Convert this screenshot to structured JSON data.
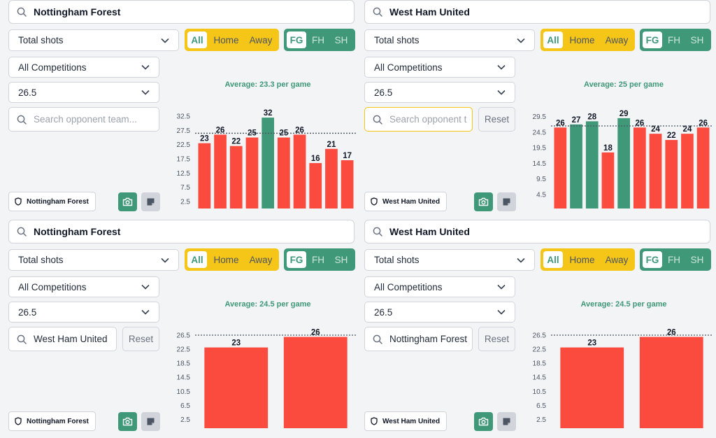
{
  "colors": {
    "over": "#fb4a3e",
    "under": "#3f9877",
    "accent_green": "#3f9877",
    "accent_yellow": "#f5c518"
  },
  "panels": [
    {
      "team": "Nottingham Forest",
      "stat": "Total shots",
      "location_options": [
        "All",
        "Home",
        "Away"
      ],
      "location_selected": "All",
      "period_options": [
        "FG",
        "FH",
        "SH"
      ],
      "period_selected": "FG",
      "competition": "All Competitions",
      "line": "26.5",
      "opponent": {
        "value": "",
        "placeholder": "Search opponent team..."
      },
      "reset_label": "",
      "team_badge": "Nottingham Forest",
      "average_label": "Average: 23.3 per game",
      "chart_data": {
        "type": "bar",
        "values": [
          23,
          26,
          22,
          25,
          32,
          25,
          26,
          16,
          21,
          17
        ],
        "highlight": [
          false,
          false,
          false,
          false,
          true,
          false,
          false,
          false,
          false,
          false
        ],
        "threshold": 26.5,
        "yticks": [
          "2.5",
          "7.5",
          "12.5",
          "17.5",
          "22.5",
          "27.5",
          "32.5"
        ],
        "yrange": [
          0,
          34
        ],
        "data_labels": [
          "23",
          "26",
          "22",
          "25",
          "32",
          "25",
          "26",
          "16",
          "21",
          "17"
        ]
      }
    },
    {
      "team": "West Ham United",
      "stat": "Total shots",
      "location_options": [
        "All",
        "Home",
        "Away"
      ],
      "location_selected": "All",
      "period_options": [
        "FG",
        "FH",
        "SH"
      ],
      "period_selected": "FG",
      "competition": "All Competitions",
      "line": "26.5",
      "opponent": {
        "value": "",
        "placeholder": "Search opponent t"
      },
      "reset_label": "Reset",
      "team_badge": "West Ham United",
      "average_label": "Average: 25 per game",
      "chart_data": {
        "type": "bar",
        "values": [
          26,
          27,
          28,
          18,
          29,
          26,
          24,
          22,
          24,
          26
        ],
        "highlight": [
          false,
          true,
          true,
          false,
          true,
          false,
          false,
          false,
          false,
          false
        ],
        "threshold": 26.5,
        "yticks": [
          "4.5",
          "9.5",
          "14.5",
          "19.5",
          "24.5",
          "29.5"
        ],
        "yrange": [
          0,
          31
        ],
        "data_labels": [
          "26",
          "27",
          "28",
          "18",
          "29",
          "26",
          "24",
          "22",
          "24",
          "26"
        ]
      }
    },
    {
      "team": "Nottingham Forest",
      "stat": "Total shots",
      "location_options": [
        "All",
        "Home",
        "Away"
      ],
      "location_selected": "All",
      "period_options": [
        "FG",
        "FH",
        "SH"
      ],
      "period_selected": "FG",
      "competition": "All Competitions",
      "line": "26.5",
      "opponent": {
        "value": "West Ham United",
        "placeholder": ""
      },
      "reset_label": "Reset",
      "team_badge": "Nottingham Forest",
      "average_label": "Average: 24.5 per game",
      "chart_data": {
        "type": "bar",
        "values": [
          23,
          26
        ],
        "highlight": [
          false,
          false
        ],
        "threshold": 26.5,
        "yticks": [
          "2.5",
          "6.5",
          "10.5",
          "14.5",
          "18.5",
          "22.5",
          "26.5"
        ],
        "yrange": [
          0,
          27.5
        ],
        "data_labels": [
          "23",
          "26"
        ]
      }
    },
    {
      "team": "West Ham United",
      "stat": "Total shots",
      "location_options": [
        "All",
        "Home",
        "Away"
      ],
      "location_selected": "All",
      "period_options": [
        "FG",
        "FH",
        "SH"
      ],
      "period_selected": "FG",
      "competition": "All Competitions",
      "line": "26.5",
      "opponent": {
        "value": "Nottingham Forest",
        "placeholder": ""
      },
      "reset_label": "Reset",
      "team_badge": "West Ham United",
      "average_label": "Average: 24.5 per game",
      "chart_data": {
        "type": "bar",
        "values": [
          23,
          26
        ],
        "highlight": [
          false,
          false
        ],
        "threshold": 26.5,
        "yticks": [
          "2.5",
          "6.5",
          "10.5",
          "14.5",
          "18.5",
          "22.5",
          "26.5"
        ],
        "yrange": [
          0,
          27.5
        ],
        "data_labels": [
          "23",
          "26"
        ]
      }
    }
  ]
}
